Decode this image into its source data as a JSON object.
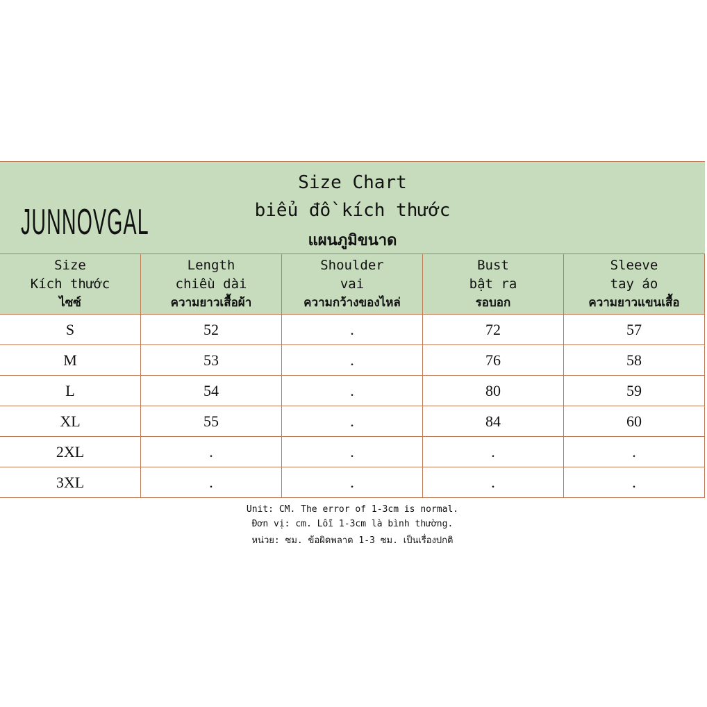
{
  "brand": "JUNNOVGAL",
  "title": {
    "en": "Size Chart",
    "vi": "biểu đồ kích thước",
    "th": "แผนภูมิขนาด"
  },
  "columns": [
    {
      "en": "Size",
      "vi": "Kích thước",
      "th": "ไซซ์"
    },
    {
      "en": "Length",
      "vi": "chiều dài",
      "th": "ความยาวเสื้อผ้า"
    },
    {
      "en": "Shoulder",
      "vi": "vai",
      "th": "ความกว้างของไหล่"
    },
    {
      "en": "Bust",
      "vi": "bật ra",
      "th": "รอบอก"
    },
    {
      "en": "Sleeve",
      "vi": "tay áo",
      "th": "ความยาวแขนเสื้อ"
    }
  ],
  "rows": [
    [
      "S",
      "52",
      ".",
      "72",
      "57"
    ],
    [
      "M",
      "53",
      ".",
      "76",
      "58"
    ],
    [
      "L",
      "54",
      ".",
      "80",
      "59"
    ],
    [
      "XL",
      "55",
      ".",
      "84",
      "60"
    ],
    [
      "2XL",
      ".",
      ".",
      ".",
      "."
    ],
    [
      "3XL",
      ".",
      ".",
      ".",
      "."
    ]
  ],
  "notes": [
    "Unit: CM. The error of 1-3cm is normal.",
    "Đơn vị: cm. Lỗi 1-3cm là bình thường.",
    "หน่วย: ซม. ข้อผิดพลาด 1-3 ซม. เป็นเรื่องปกติ"
  ],
  "colors": {
    "header_bg": "#c6dcbd",
    "border": "#c07a55"
  }
}
